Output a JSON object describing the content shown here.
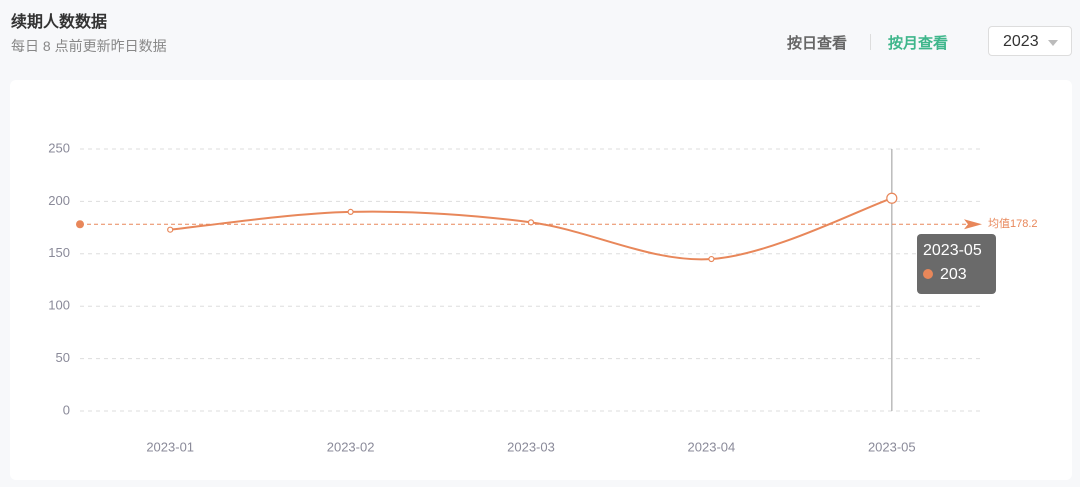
{
  "header": {
    "title": "续期人数数据",
    "subtitle": "每日 8 点前更新昨日数据",
    "buttons": [
      "按日查看",
      "按月查看"
    ],
    "year": "2023"
  },
  "chart_data": {
    "type": "line",
    "categories": [
      "2023-01",
      "2023-02",
      "2023-03",
      "2023-04",
      "2023-05"
    ],
    "series": [
      {
        "name": "续期人数",
        "color": "#e8875a",
        "values": [
          173,
          190,
          180,
          145,
          203
        ]
      }
    ],
    "ylim": [
      0,
      250
    ],
    "yticks": [
      0,
      50,
      100,
      150,
      200,
      250
    ],
    "grid": true,
    "smooth": true,
    "mark_line": {
      "value": 178.2,
      "label": "均值178.2"
    },
    "tooltip_index": 4
  }
}
